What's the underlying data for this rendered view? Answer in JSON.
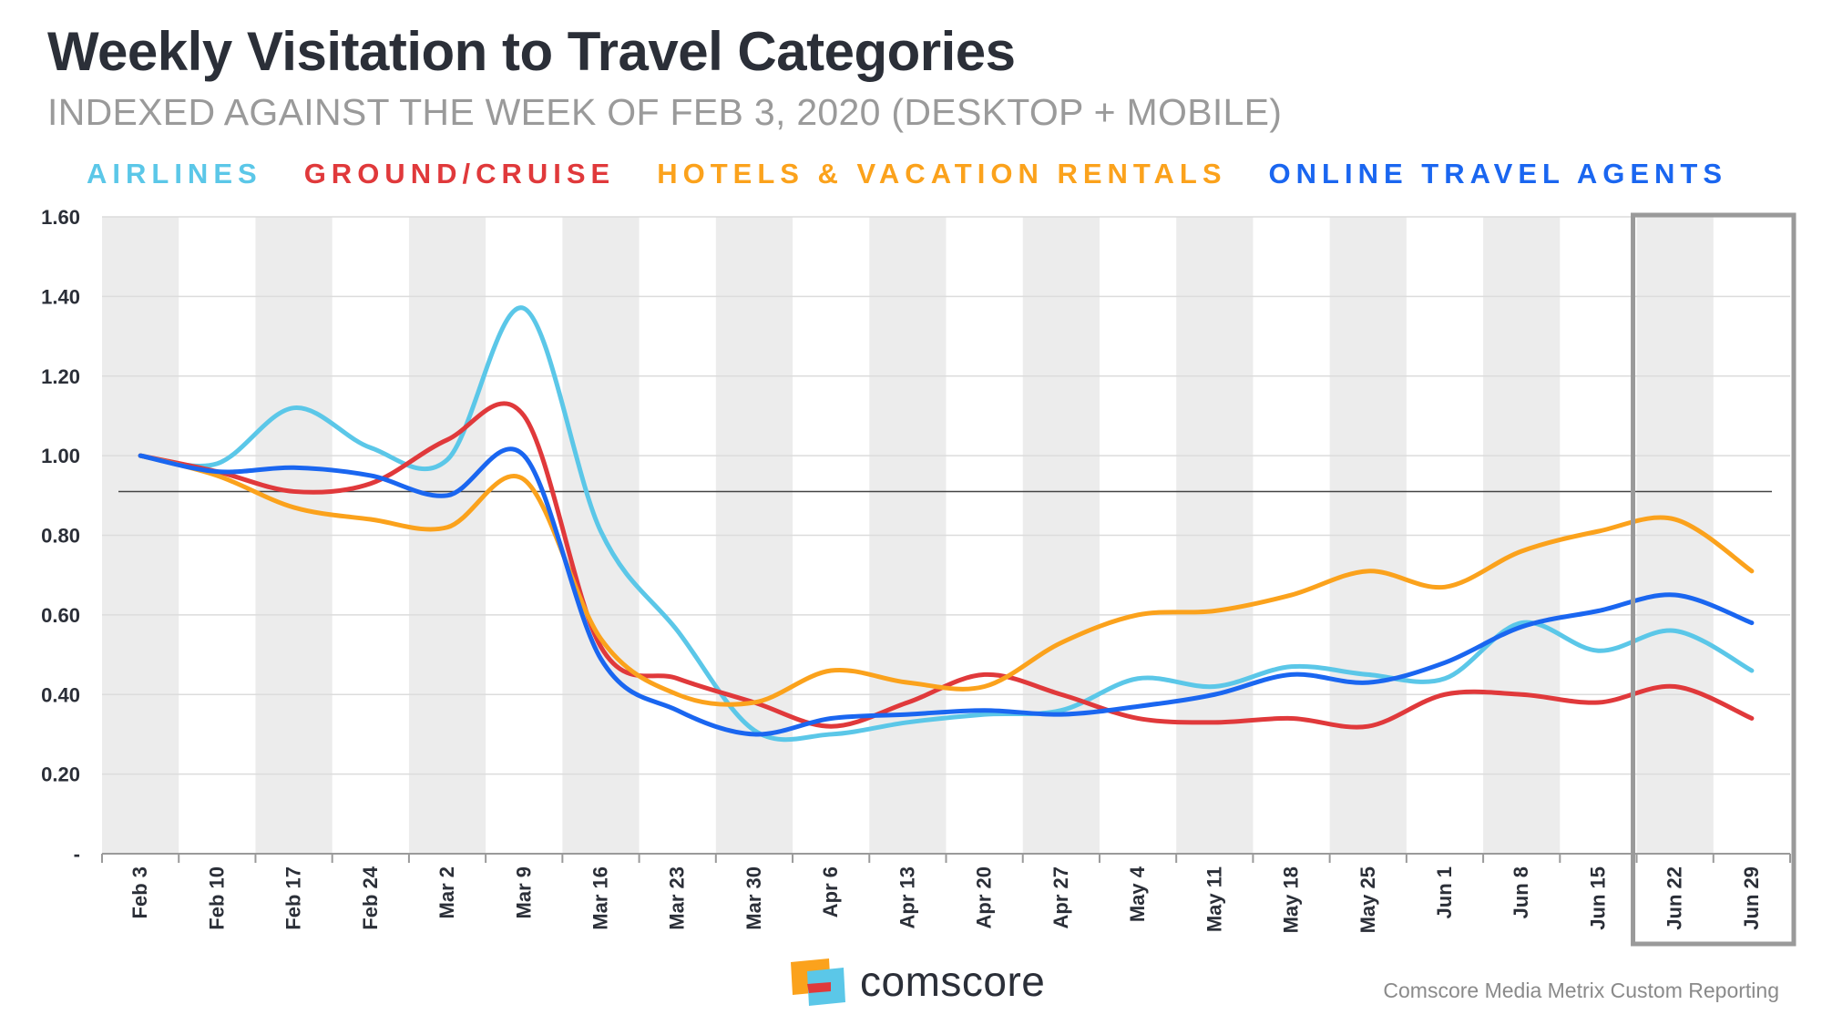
{
  "header": {
    "title": "Weekly Visitation to Travel Categories",
    "subtitle": "INDEXED AGAINST THE WEEK OF FEB 3, 2020 (DESKTOP + MOBILE)"
  },
  "legend": [
    {
      "label": "AIRLINES",
      "color": "#5bc7e8"
    },
    {
      "label": "GROUND/CRUISE",
      "color": "#e0393b"
    },
    {
      "label": "HOTELS & VACATION RENTALS",
      "color": "#fba21c"
    },
    {
      "label": "ONLINE TRAVEL AGENTS",
      "color": "#1a66f0"
    }
  ],
  "chart_data": {
    "type": "line",
    "title": "Weekly Visitation to Travel Categories",
    "subtitle": "INDEXED AGAINST THE WEEK OF FEB 3, 2020 (DESKTOP + MOBILE)",
    "categories": [
      "Feb 3",
      "Feb 10",
      "Feb 17",
      "Feb 24",
      "Mar 2",
      "Mar 9",
      "Mar 16",
      "Mar 23",
      "Mar 30",
      "Apr 6",
      "Apr 13",
      "Apr 20",
      "Apr 27",
      "May 4",
      "May 11",
      "May 18",
      "May 25",
      "Jun 1",
      "Jun 8",
      "Jun 15",
      "Jun 22",
      "Jun 29"
    ],
    "ylim": [
      0,
      1.6
    ],
    "yticks": [
      0,
      0.2,
      0.4,
      0.6,
      0.8,
      1.0,
      1.2,
      1.4,
      1.6
    ],
    "ytick_labels": [
      "-",
      "0.20",
      "0.40",
      "0.60",
      "0.80",
      "1.00",
      "1.20",
      "1.40",
      "1.60"
    ],
    "reference_line": 0.91,
    "highlight_range": [
      "Jun 22",
      "Jun 29"
    ],
    "grid": true,
    "legend_position": "top",
    "series": [
      {
        "name": "AIRLINES",
        "color": "#5bc7e8",
        "values": [
          1.0,
          0.98,
          1.12,
          1.02,
          0.99,
          1.37,
          0.81,
          0.56,
          0.31,
          0.3,
          0.33,
          0.35,
          0.36,
          0.44,
          0.42,
          0.47,
          0.45,
          0.44,
          0.58,
          0.51,
          0.56,
          0.46
        ]
      },
      {
        "name": "GROUND/CRUISE",
        "color": "#e0393b",
        "values": [
          1.0,
          0.96,
          0.91,
          0.93,
          1.04,
          1.1,
          0.52,
          0.44,
          0.38,
          0.32,
          0.38,
          0.45,
          0.4,
          0.34,
          0.33,
          0.34,
          0.32,
          0.4,
          0.4,
          0.38,
          0.42,
          0.34
        ]
      },
      {
        "name": "HOTELS & VACATION RENTALS",
        "color": "#fba21c",
        "values": [
          1.0,
          0.95,
          0.87,
          0.84,
          0.82,
          0.94,
          0.54,
          0.4,
          0.38,
          0.46,
          0.43,
          0.42,
          0.53,
          0.6,
          0.61,
          0.65,
          0.71,
          0.67,
          0.76,
          0.81,
          0.84,
          0.71
        ]
      },
      {
        "name": "ONLINE TRAVEL AGENTS",
        "color": "#1a66f0",
        "values": [
          1.0,
          0.96,
          0.97,
          0.95,
          0.9,
          1.0,
          0.49,
          0.36,
          0.3,
          0.34,
          0.35,
          0.36,
          0.35,
          0.37,
          0.4,
          0.45,
          0.43,
          0.48,
          0.57,
          0.61,
          0.65,
          0.58
        ]
      }
    ]
  },
  "footer": {
    "brand": "comscore",
    "source": "Comscore Media Metrix Custom Reporting",
    "logo_colors": [
      "#fba21c",
      "#e0393b",
      "#5bc7e8"
    ]
  }
}
